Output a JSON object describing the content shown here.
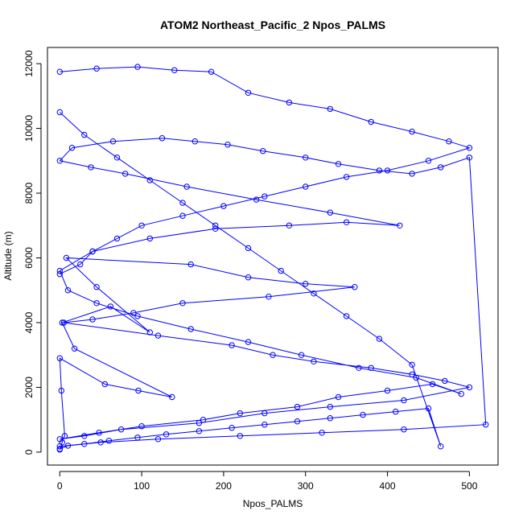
{
  "chart": {
    "title": "ATOM2 Northeast_Pacific_2 Npos_PALMS",
    "xlabel": "Npos_PALMS",
    "ylabel": "Altitude (m)"
  },
  "chart_data": {
    "type": "scatter",
    "title": "ATOM2 Northeast_Pacific_2 Npos_PALMS",
    "xlabel": "Npos_PALMS",
    "ylabel": "Altitude (m)",
    "xlim": [
      -15,
      535
    ],
    "ylim": [
      -400,
      12500
    ],
    "xticks": [
      0,
      100,
      200,
      300,
      400,
      500
    ],
    "yticks": [
      0,
      2000,
      4000,
      6000,
      8000,
      10000,
      12000
    ],
    "grid": false,
    "legend": "none",
    "marker": "open-circle",
    "connected": true,
    "color": "#0000ff",
    "series": [
      {
        "x": [
          0,
          3,
          6,
          2,
          0,
          55,
          96,
          137,
          18,
          3,
          62,
          110,
          45,
          8,
          160,
          230,
          300,
          360,
          255,
          150,
          90,
          40,
          5,
          120,
          210,
          260,
          310,
          380,
          430,
          470,
          500,
          420,
          330,
          250,
          170,
          75,
          30,
          0,
          48,
          100,
          175,
          220,
          290,
          340,
          400,
          455,
          490,
          435,
          365,
          295,
          230,
          160,
          95,
          45,
          10,
          0,
          40,
          110,
          190,
          280,
          350,
          415,
          330,
          240,
          155,
          80,
          38,
          0,
          15,
          65,
          125,
          165,
          205,
          248,
          300,
          340,
          390,
          430,
          465,
          500,
          520,
          420,
          320,
          220,
          120,
          50,
          10,
          0
        ],
        "y": [
          80,
          300,
          500,
          1900,
          2900,
          2100,
          1900,
          1700,
          3200,
          4000,
          4500,
          3700,
          5100,
          6000,
          5800,
          5400,
          5200,
          5100,
          4800,
          4600,
          4300,
          4100,
          4000,
          3600,
          3300,
          3000,
          2800,
          2600,
          2400,
          2200,
          2000,
          1600,
          1400,
          1200,
          900,
          700,
          500,
          400,
          600,
          800,
          1000,
          1200,
          1400,
          1700,
          1900,
          2100,
          1800,
          2300,
          2600,
          3000,
          3400,
          3800,
          4200,
          4600,
          5000,
          5600,
          6200,
          6600,
          6900,
          7000,
          7100,
          7000,
          7400,
          7800,
          8200,
          8600,
          8800,
          9000,
          9400,
          9600,
          9700,
          9600,
          9500,
          9300,
          9100,
          8900,
          8700,
          8600,
          8800,
          9100,
          850,
          700,
          600,
          500,
          400,
          300,
          200,
          100
        ]
      },
      {
        "x": [
          0,
          45,
          95,
          140,
          185,
          230,
          280,
          330,
          380,
          430,
          475,
          500,
          450,
          400,
          350,
          300,
          250,
          200,
          150,
          100,
          70,
          40,
          25,
          0
        ],
        "y": [
          11750,
          11850,
          11900,
          11800,
          11750,
          11100,
          10800,
          10600,
          10200,
          9900,
          9600,
          9400,
          9000,
          8700,
          8500,
          8200,
          7900,
          7600,
          7300,
          7000,
          6600,
          6200,
          5800,
          5500
        ]
      },
      {
        "x": [
          0,
          30,
          60,
          95,
          130,
          170,
          210,
          250,
          290,
          330,
          370,
          410,
          450,
          465,
          430,
          390,
          350,
          310,
          270,
          230,
          190,
          150,
          110,
          70,
          30,
          0
        ],
        "y": [
          180,
          250,
          350,
          450,
          550,
          650,
          750,
          850,
          950,
          1050,
          1150,
          1250,
          1350,
          180,
          2700,
          3500,
          4200,
          4900,
          5600,
          6300,
          7000,
          7700,
          8400,
          9100,
          9800,
          10500
        ]
      }
    ]
  }
}
